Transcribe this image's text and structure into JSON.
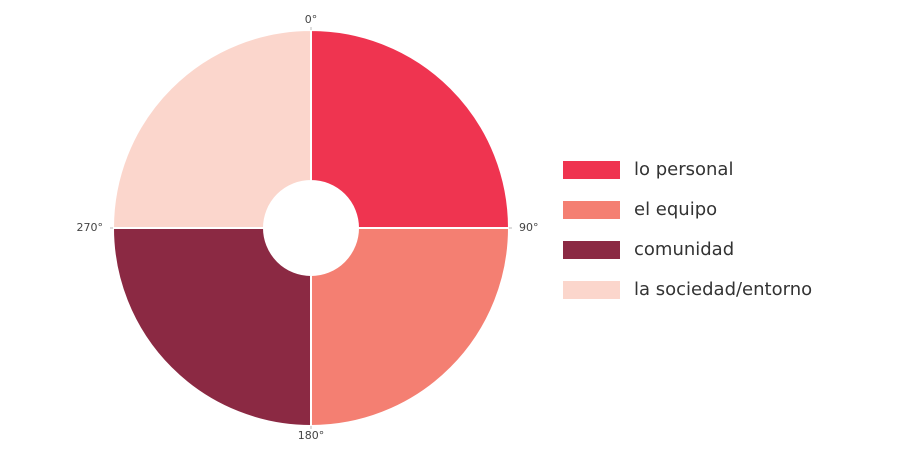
{
  "chart_data": {
    "type": "barpolar",
    "series": [
      {
        "name": "lo personal",
        "color": "#ef3450",
        "theta": 45,
        "width": 90,
        "r": 1
      },
      {
        "name": "el equipo",
        "color": "#f47f72",
        "theta": 135,
        "width": 90,
        "r": 1
      },
      {
        "name": "comunidad",
        "color": "#8b2943",
        "theta": 225,
        "width": 90,
        "r": 1
      },
      {
        "name": "la sociedad/entorno",
        "color": "#fbd6cc",
        "theta": 315,
        "width": 90,
        "r": 1
      }
    ],
    "rlim": [
      0,
      1
    ],
    "thetaticks": [
      {
        "value": 0,
        "label": "0°"
      },
      {
        "value": 90,
        "label": "90°"
      },
      {
        "value": 180,
        "label": "180°"
      },
      {
        "value": 270,
        "label": "270°"
      }
    ]
  }
}
